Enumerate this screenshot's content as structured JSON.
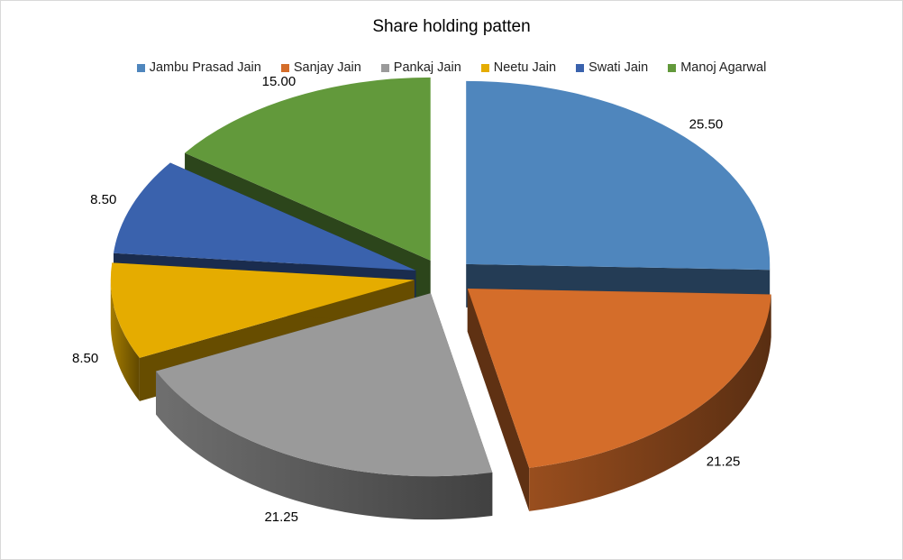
{
  "chart_data": {
    "type": "pie",
    "title": "Share holding patten",
    "legend_position": "top",
    "categories": [
      "Jambu Prasad Jain",
      "Sanjay Jain",
      "Pankaj Jain",
      "Neetu Jain",
      "Swati Jain",
      "Manoj Agarwal"
    ],
    "values": [
      25.5,
      21.25,
      21.25,
      8.5,
      8.5,
      15.0
    ],
    "data_labels": [
      "25.50",
      "21.25",
      "21.25",
      "8.50",
      "8.50",
      "15.00"
    ],
    "colors": [
      "#4f86bd",
      "#d46d2a",
      "#9a9a9a",
      "#e5ac00",
      "#3a62ad",
      "#62993b"
    ],
    "exploded": true,
    "three_d": true
  }
}
